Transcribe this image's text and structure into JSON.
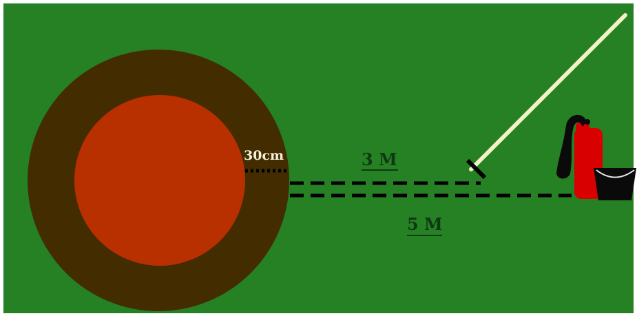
{
  "labels": {
    "radius_width": "30cm",
    "near_distance": "3 M",
    "far_distance": "5 M"
  },
  "colors": {
    "field": "#268024",
    "outer_ring": "#432c00",
    "inner_circle": "#b93000",
    "pole": "#f4f0c8",
    "dash": "#000000",
    "extinguisher": "#d80000",
    "hose": "#0a0a0a",
    "bucket": "#0a0a0a"
  },
  "icons": {
    "pole": "pole-icon",
    "extinguisher": "fire-extinguisher-icon",
    "bucket": "bucket-icon"
  }
}
